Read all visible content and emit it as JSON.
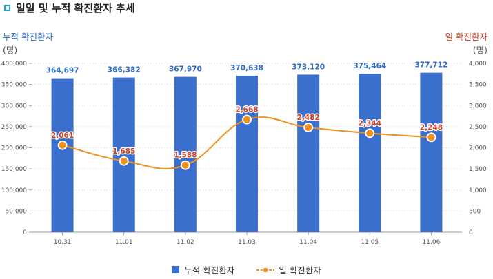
{
  "page": {
    "title": "일일 및 누적 확진환자 추세",
    "left_axis_title": "누적 확진환자",
    "left_axis_unit": "(명)",
    "right_axis_title": "일 확진환자",
    "right_axis_unit": "(명)"
  },
  "colors": {
    "bar": "#3a6fcd",
    "line": "#f0901e",
    "bar_label": "#2e6cc7",
    "line_label": "#d0412c",
    "title_accent": "#1aa3d0"
  },
  "chart_data": {
    "type": "bar",
    "title": "일일 및 누적 확진환자 추세",
    "categories": [
      "10.31",
      "11.01",
      "11.02",
      "11.03",
      "11.04",
      "11.05",
      "11.06"
    ],
    "series": [
      {
        "name": "누적 확진환자",
        "type": "bar",
        "axis": "left",
        "values": [
          364697,
          366382,
          367970,
          370638,
          373120,
          375464,
          377712
        ],
        "labels": [
          "364,697",
          "366,382",
          "367,970",
          "370,638",
          "373,120",
          "375,464",
          "377,712"
        ]
      },
      {
        "name": "일 확진환자",
        "type": "line",
        "axis": "right",
        "values": [
          2061,
          1685,
          1588,
          2668,
          2482,
          2344,
          2248
        ],
        "labels": [
          "2,061",
          "1,685",
          "1,588",
          "2,668",
          "2,482",
          "2,344",
          "2,248"
        ]
      }
    ],
    "y_left": {
      "label": "누적 확진환자",
      "unit": "(명)",
      "ylim": [
        0,
        400000
      ],
      "ticks": [
        0,
        50000,
        100000,
        150000,
        200000,
        250000,
        300000,
        350000,
        400000
      ],
      "tick_labels": [
        "0",
        "50,000",
        "100,000",
        "150,000",
        "200,000",
        "250,000",
        "300,000",
        "350,000",
        "400,000"
      ]
    },
    "y_right": {
      "label": "일 확진환자",
      "unit": "(명)",
      "ylim": [
        0,
        4000
      ],
      "ticks": [
        0,
        500,
        1000,
        1500,
        2000,
        2500,
        3000,
        3500,
        4000
      ],
      "tick_labels": [
        "0",
        "500",
        "1,000",
        "1,500",
        "2,000",
        "2,500",
        "3,000",
        "3,500",
        "4,000"
      ]
    },
    "grid": true,
    "legend_position": "bottom"
  },
  "legend": {
    "bar_label": "누적 확진환자",
    "line_label": "일 확진환자"
  }
}
